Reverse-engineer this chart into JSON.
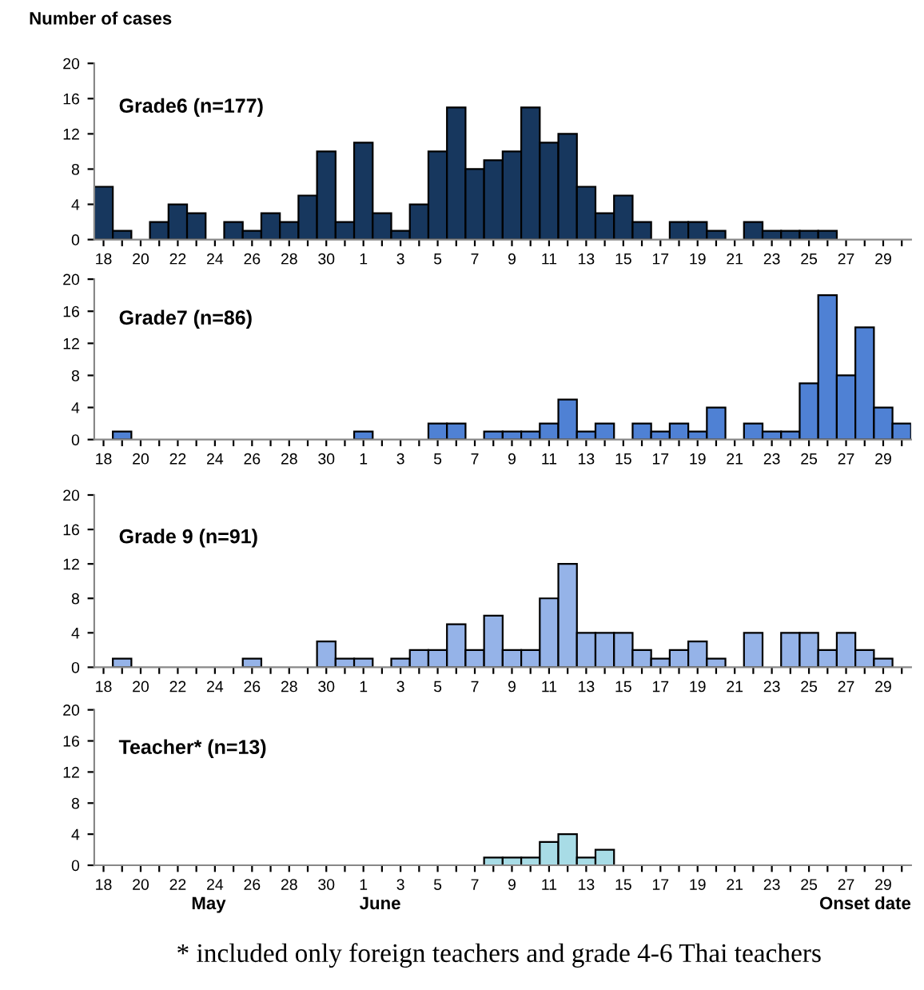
{
  "chart_data": [
    {
      "type": "bar",
      "title": "Grade6 (n=177)",
      "ylabel": "Number of cases",
      "categories": [
        "18",
        null,
        "20",
        null,
        "22",
        null,
        "24",
        null,
        "26",
        null,
        "28",
        null,
        "30",
        null,
        "1",
        null,
        "3",
        null,
        "5",
        null,
        "7",
        null,
        "9",
        null,
        "11",
        null,
        "13",
        null,
        "15",
        null,
        "17",
        null,
        "19",
        null,
        "21",
        null,
        "23",
        null,
        "25",
        null,
        "27",
        null,
        "29",
        null
      ],
      "values": [
        6,
        1,
        0,
        2,
        4,
        3,
        0,
        2,
        1,
        3,
        2,
        5,
        10,
        2,
        11,
        3,
        1,
        4,
        10,
        15,
        8,
        9,
        10,
        15,
        11,
        12,
        6,
        3,
        5,
        2,
        0,
        2,
        2,
        1,
        0,
        2,
        1,
        1,
        1,
        1,
        0,
        0,
        0,
        0
      ],
      "color": "#17375e",
      "ylim": [
        0,
        20
      ],
      "yticks": [
        0,
        4,
        8,
        12,
        16,
        20
      ]
    },
    {
      "type": "bar",
      "title": "Grade7 (n=86)",
      "categories": [
        "18",
        null,
        "20",
        null,
        "22",
        null,
        "24",
        null,
        "26",
        null,
        "28",
        null,
        "30",
        null,
        "1",
        null,
        "3",
        null,
        "5",
        null,
        "7",
        null,
        "9",
        null,
        "11",
        null,
        "13",
        null,
        "15",
        null,
        "17",
        null,
        "19",
        null,
        "21",
        null,
        "23",
        null,
        "25",
        null,
        "27",
        null,
        "29",
        null
      ],
      "values": [
        0,
        1,
        0,
        0,
        0,
        0,
        0,
        0,
        0,
        0,
        0,
        0,
        0,
        0,
        1,
        0,
        0,
        0,
        2,
        2,
        0,
        1,
        1,
        1,
        2,
        5,
        1,
        2,
        0,
        2,
        1,
        2,
        1,
        4,
        0,
        2,
        1,
        1,
        7,
        18,
        8,
        14,
        4,
        2
      ],
      "color": "#4f81d4",
      "ylim": [
        0,
        20
      ],
      "yticks": [
        0,
        4,
        8,
        12,
        16,
        20
      ]
    },
    {
      "type": "bar",
      "title": "Grade 9 (n=91)",
      "categories": [
        "18",
        null,
        "20",
        null,
        "22",
        null,
        "24",
        null,
        "26",
        null,
        "28",
        null,
        "30",
        null,
        "1",
        null,
        "3",
        null,
        "5",
        null,
        "7",
        null,
        "9",
        null,
        "11",
        null,
        "13",
        null,
        "15",
        null,
        "17",
        null,
        "19",
        null,
        "21",
        null,
        "23",
        null,
        "25",
        null,
        "27",
        null,
        "29",
        null
      ],
      "values": [
        0,
        1,
        0,
        0,
        0,
        0,
        0,
        0,
        1,
        0,
        0,
        0,
        3,
        1,
        1,
        0,
        1,
        2,
        2,
        5,
        2,
        6,
        2,
        2,
        8,
        12,
        4,
        4,
        4,
        2,
        1,
        2,
        3,
        1,
        0,
        4,
        0,
        4,
        4,
        2,
        4,
        2,
        1,
        0
      ],
      "color": "#95b3e8",
      "ylim": [
        0,
        20
      ],
      "yticks": [
        0,
        4,
        8,
        12,
        16,
        20
      ]
    },
    {
      "type": "bar",
      "title": "Teacher* (n=13)",
      "xlabel": "Onset date",
      "categories": [
        "18",
        null,
        "20",
        null,
        "22",
        null,
        "24",
        null,
        "26",
        null,
        "28",
        null,
        "30",
        null,
        "1",
        null,
        "3",
        null,
        "5",
        null,
        "7",
        null,
        "9",
        null,
        "11",
        null,
        "13",
        null,
        "15",
        null,
        "17",
        null,
        "19",
        null,
        "21",
        null,
        "23",
        null,
        "25",
        null,
        "27",
        null,
        "29",
        null
      ],
      "values": [
        0,
        0,
        0,
        0,
        0,
        0,
        0,
        0,
        0,
        0,
        0,
        0,
        0,
        0,
        0,
        0,
        0,
        0,
        0,
        0,
        0,
        1,
        1,
        1,
        3,
        4,
        1,
        2,
        0,
        0,
        0,
        0,
        0,
        0,
        0,
        0,
        0,
        0,
        0,
        0,
        0,
        0,
        0,
        0
      ],
      "color": "#a8dce6",
      "ylim": [
        0,
        20
      ],
      "yticks": [
        0,
        4,
        8,
        12,
        16,
        20
      ],
      "annotations": [
        "May",
        "June",
        "* included only foreign teachers and grade 4-6 Thai teachers"
      ]
    }
  ]
}
